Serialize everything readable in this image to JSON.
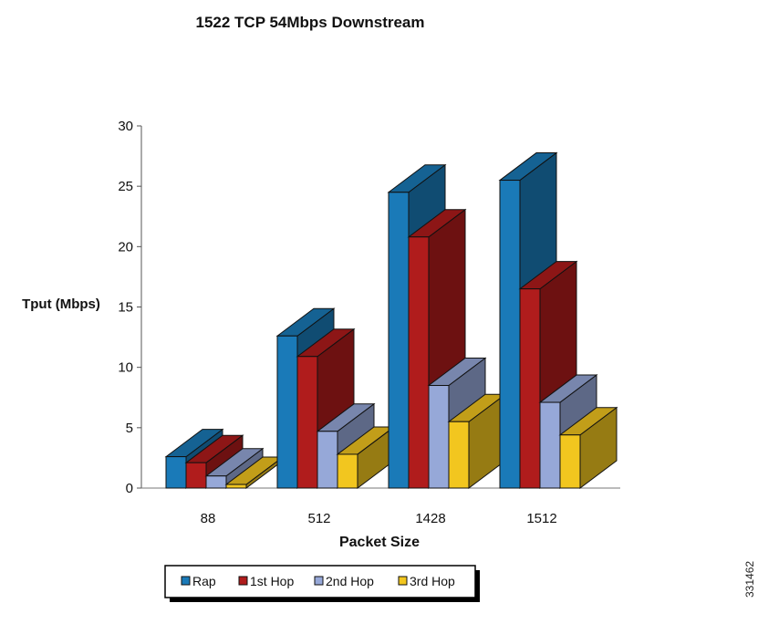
{
  "chart_data": {
    "type": "bar",
    "title": "1522 TCP 54Mbps Downstream",
    "xlabel": "Packet Size",
    "ylabel": "Tput (Mbps)",
    "ylim": [
      0,
      30
    ],
    "yticks": [
      0,
      5,
      10,
      15,
      20,
      25,
      30
    ],
    "categories": [
      "88",
      "512",
      "1428",
      "1512"
    ],
    "series": [
      {
        "name": "Rap",
        "values": [
          2.6,
          12.6,
          24.5,
          25.5
        ],
        "color": "#1a7ab8"
      },
      {
        "name": "1st Hop",
        "values": [
          2.1,
          10.9,
          20.8,
          16.5
        ],
        "color": "#b01c1c"
      },
      {
        "name": "2nd Hop",
        "values": [
          1.0,
          4.7,
          8.5,
          7.1
        ],
        "color": "#96a8d8"
      },
      {
        "name": "3rd Hop",
        "values": [
          0.3,
          2.8,
          5.5,
          4.4
        ],
        "color": "#f2c61f"
      }
    ],
    "style": "3d-column",
    "legend_position": "bottom",
    "grid": false
  },
  "side_label": "331462"
}
